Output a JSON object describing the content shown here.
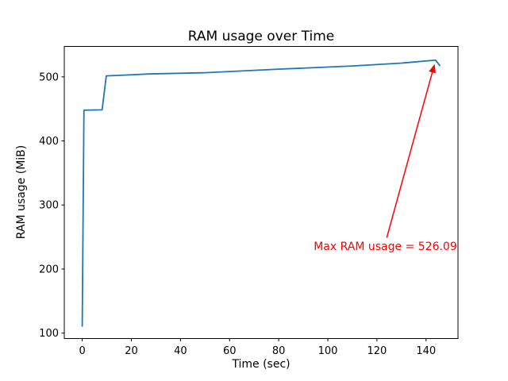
{
  "chart_data": {
    "type": "line",
    "title": "RAM usage over Time",
    "xlabel": "Time (sec)",
    "ylabel": "RAM usage (MiB)",
    "xlim": [
      -7.3,
      153.0
    ],
    "ylim": [
      91.5,
      547.5
    ],
    "xticks": [
      0,
      20,
      40,
      60,
      80,
      100,
      120,
      140
    ],
    "yticks": [
      100,
      200,
      300,
      400,
      500
    ],
    "grid": false,
    "legend_position": "none",
    "background": "#ffffff",
    "axis_color": "#000000",
    "series": [
      {
        "name": "RAM usage",
        "color": "#1f77b4",
        "points": [
          [
            0,
            110
          ],
          [
            0.7,
            448
          ],
          [
            8.1,
            448.5
          ],
          [
            9.8,
            501.5
          ],
          [
            19,
            503
          ],
          [
            27,
            504.5
          ],
          [
            50,
            506.5
          ],
          [
            80,
            512
          ],
          [
            110,
            517
          ],
          [
            130,
            521.5
          ],
          [
            143.9,
            526.09
          ],
          [
            145.7,
            517
          ]
        ]
      }
    ],
    "annotation": {
      "text": "Max RAM usage = 526.09",
      "max_value": 526.09,
      "color": "#ff0000",
      "target": [
        143.9,
        526.09
      ],
      "tail": [
        124.0,
        249.0
      ],
      "text_pos": [
        152.6,
        234.0
      ]
    }
  }
}
